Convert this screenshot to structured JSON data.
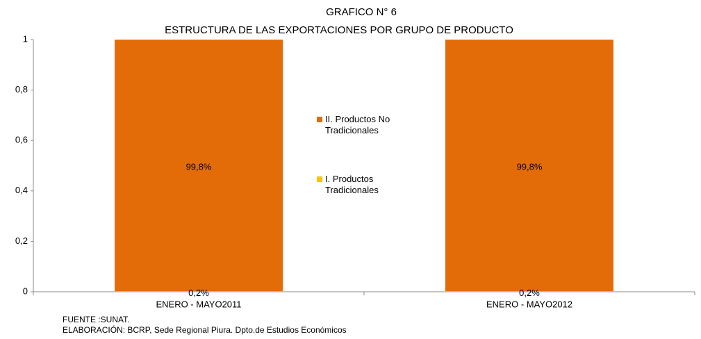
{
  "chart_data": {
    "type": "stacked_bar",
    "title": "GRAFICO N° 6",
    "subtitle": "ESTRUCTURA DE LAS EXPORTACIONES POR GRUPO DE PRODUCTO",
    "categories": [
      "ENERO - MAYO2011",
      "ENERO - MAYO2012"
    ],
    "series": [
      {
        "name": "I. Productos Tradicionales",
        "color": "#ffc000",
        "values": [
          0.002,
          0.002
        ],
        "value_labels": [
          "0,2%",
          "0,2%"
        ]
      },
      {
        "name": "II. Productos No Tradicionales",
        "color": "#e36c09",
        "values": [
          0.998,
          0.998
        ],
        "value_labels": [
          "99,8%",
          "99,8%"
        ]
      }
    ],
    "ylim": [
      0,
      1
    ],
    "yticks": [
      0,
      {
        "value": 0.2,
        "label": "0,2"
      },
      {
        "value": 0.4,
        "label": "0,4"
      },
      {
        "value": 0.6,
        "label": "0,6"
      },
      {
        "value": 0.8,
        "label": "0,8"
      },
      1
    ],
    "grid": false,
    "legend": "center",
    "source": "FUENTE :SUNAT.",
    "credit": "ELABORACIÓN: BCRP, Sede Regional Piura. Dpto.de Estudios Económicos"
  }
}
